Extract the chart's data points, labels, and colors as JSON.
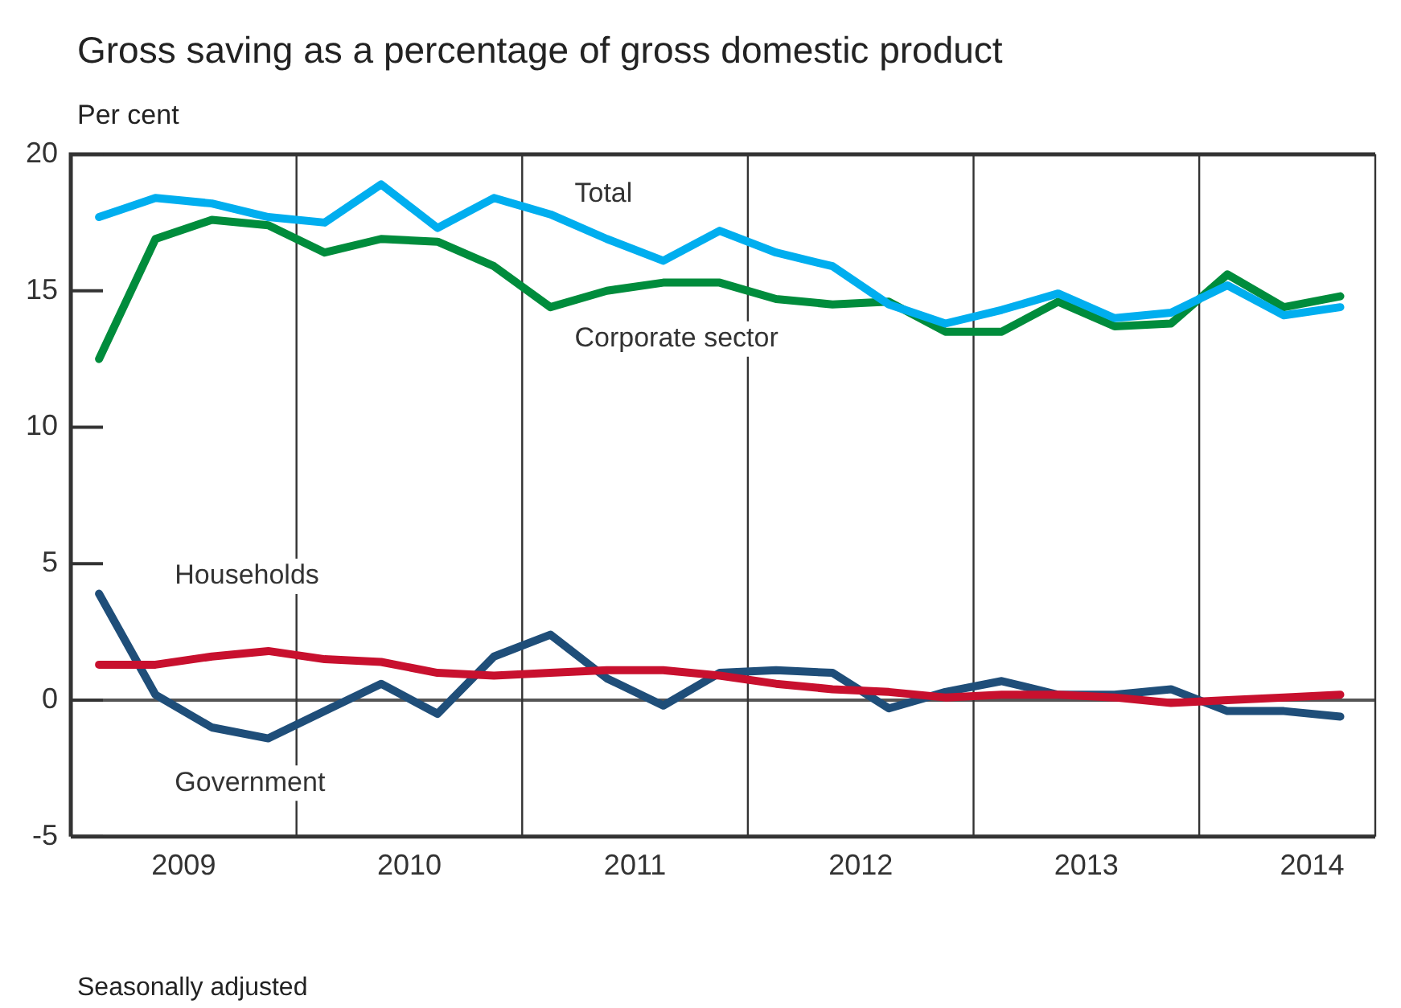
{
  "chart_data": {
    "type": "line",
    "title": "Gross saving as a percentage of gross domestic product",
    "ylabel": "Per cent",
    "annotations": [
      "Seasonally adjusted"
    ],
    "x": [
      2009.125,
      2009.375,
      2009.625,
      2009.875,
      2010.125,
      2010.375,
      2010.625,
      2010.875,
      2011.125,
      2011.375,
      2011.625,
      2011.875,
      2012.125,
      2012.375,
      2012.625,
      2012.875,
      2013.125,
      2013.375,
      2013.625,
      2013.875,
      2014.125,
      2014.375,
      2014.625
    ],
    "xlim": [
      2009,
      2014.78
    ],
    "xticks": [
      {
        "value": 2009.5,
        "label": "2009"
      },
      {
        "value": 2010.5,
        "label": "2010"
      },
      {
        "value": 2011.5,
        "label": "2011"
      },
      {
        "value": 2012.5,
        "label": "2012"
      },
      {
        "value": 2013.5,
        "label": "2013"
      },
      {
        "value": 2014.5,
        "label": "2014"
      }
    ],
    "ylim": [
      -5,
      20
    ],
    "yticks": [
      -5,
      0,
      5,
      10,
      15,
      20
    ],
    "grid": false,
    "legend": false,
    "line_style": "solid",
    "marker": "none",
    "ref_lines": [
      {
        "axis": "y",
        "value": 0,
        "color": "#555555"
      },
      {
        "axis": "x",
        "value": 2010,
        "color": "#333333"
      },
      {
        "axis": "x",
        "value": 2011,
        "color": "#333333"
      },
      {
        "axis": "x",
        "value": 2012,
        "color": "#333333"
      },
      {
        "axis": "x",
        "value": 2013,
        "color": "#333333"
      },
      {
        "axis": "x",
        "value": 2014,
        "color": "#333333"
      }
    ],
    "series": [
      {
        "name": "Total",
        "color": "#00aeef",
        "values": [
          17.7,
          18.4,
          18.2,
          17.7,
          17.5,
          18.9,
          17.3,
          18.4,
          17.8,
          16.9,
          16.1,
          17.2,
          16.4,
          15.9,
          14.5,
          13.8,
          14.3,
          14.9,
          14.0,
          14.2,
          15.2,
          14.1,
          14.4
        ]
      },
      {
        "name": "Corporate sector",
        "color": "#008c3c",
        "values": [
          12.5,
          16.9,
          17.6,
          17.4,
          16.4,
          16.9,
          16.8,
          15.9,
          14.4,
          15.0,
          15.3,
          15.3,
          14.7,
          14.5,
          14.6,
          13.5,
          13.5,
          14.6,
          13.7,
          13.8,
          15.6,
          14.4,
          14.8
        ]
      },
      {
        "name": "Households",
        "color": "#c8102e",
        "values": [
          1.3,
          1.3,
          1.6,
          1.8,
          1.5,
          1.4,
          1.0,
          0.9,
          1.0,
          1.1,
          1.1,
          0.9,
          0.6,
          0.4,
          0.3,
          0.1,
          0.2,
          0.2,
          0.1,
          -0.1,
          0.0,
          0.1,
          0.2
        ]
      },
      {
        "name": "Government",
        "color": "#1f4e79",
        "values": [
          3.9,
          0.2,
          -1.0,
          -1.4,
          -0.4,
          0.6,
          -0.5,
          1.6,
          2.4,
          0.8,
          -0.2,
          1.0,
          1.1,
          1.0,
          -0.3,
          0.3,
          0.7,
          0.2,
          0.2,
          0.4,
          -0.4,
          -0.4,
          -0.6
        ]
      }
    ]
  }
}
